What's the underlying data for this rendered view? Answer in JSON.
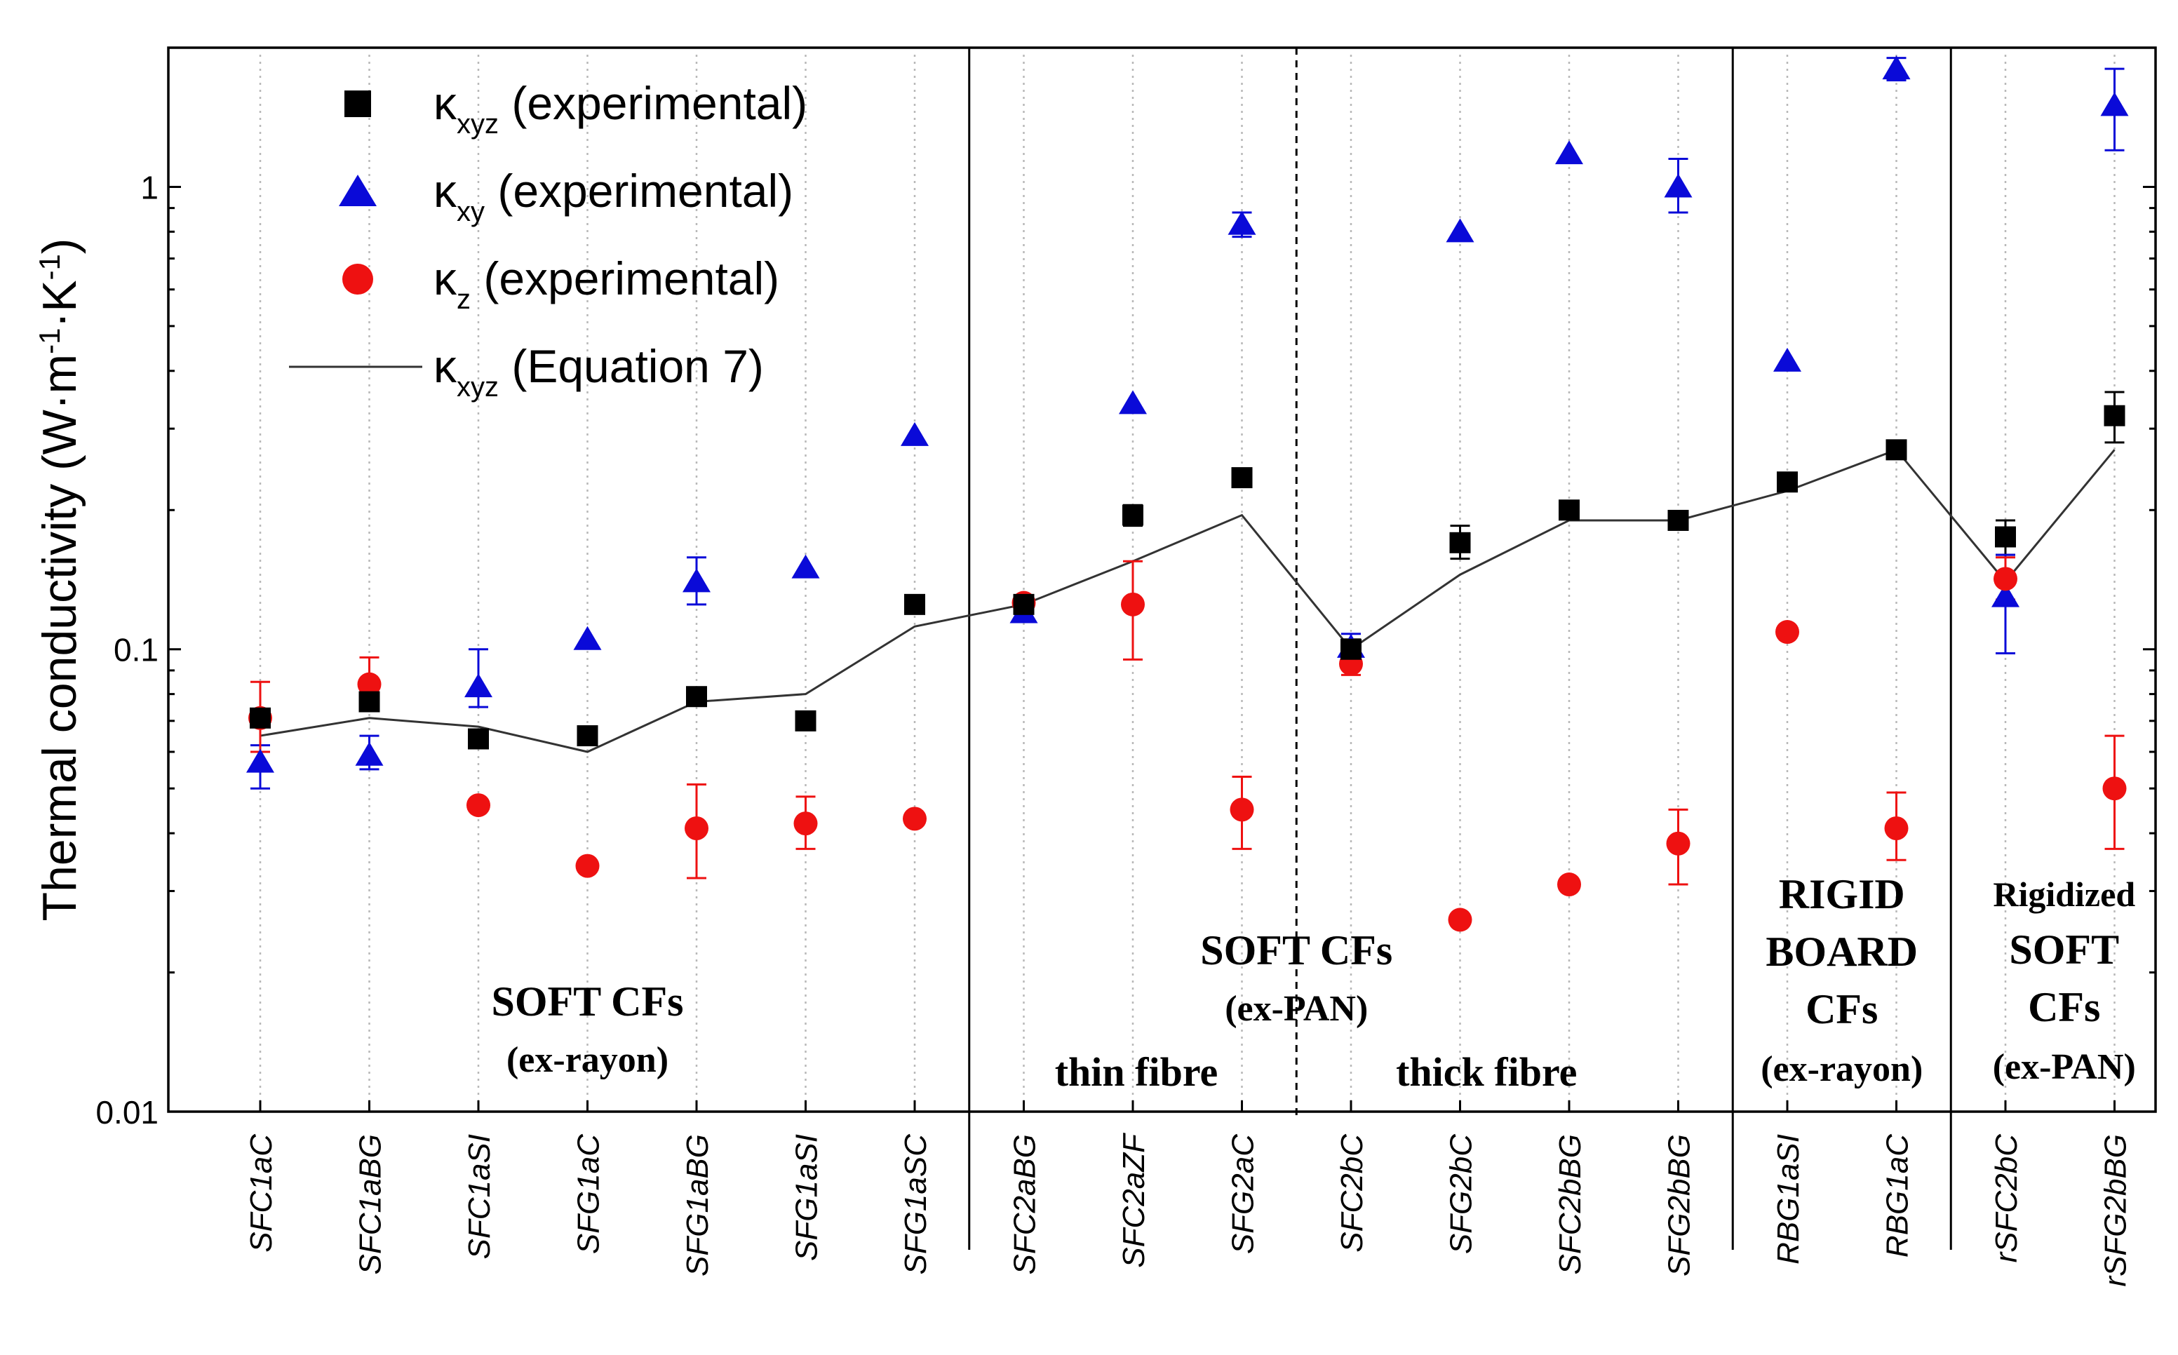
{
  "chart_data": {
    "type": "scatter",
    "ylabel": "Thermal conductivity (W·m⁻¹·K⁻¹)",
    "yscale": "log",
    "ylim": [
      0.01,
      2.0
    ],
    "yticks": [
      {
        "value": 0.01,
        "label": "0.01"
      },
      {
        "value": 0.1,
        "label": "0.1"
      },
      {
        "value": 1,
        "label": "1"
      }
    ],
    "categories": [
      "SFC1aC",
      "SFC1aBG",
      "SFC1aSI",
      "SFG1aC",
      "SFG1aBG",
      "SFG1aSI",
      "SFG1aSC",
      "SFC2aBG",
      "SFC2aZF",
      "SFG2aC",
      "SFC2bC",
      "SFG2bC",
      "SFC2bBG",
      "SFG2bBG",
      "RBG1aSI",
      "RBG1aC",
      "rSFC2bC",
      "rSFG2bBG"
    ],
    "legend_position": "top-left",
    "legend": [
      {
        "symbol": "square",
        "name": "κ",
        "sub": "xyz",
        "suffix": " (experimental)"
      },
      {
        "symbol": "triangle",
        "name": "κ",
        "sub": "xy",
        "suffix": "  (experimental)"
      },
      {
        "symbol": "circle",
        "name": "κ",
        "sub": "z",
        "suffix": "  (experimental)"
      },
      {
        "symbol": "line",
        "name": "κ",
        "sub": "xyz",
        "suffix": " (Equation 7)"
      }
    ],
    "series": [
      {
        "name": "κxyz (experimental)",
        "marker": "square",
        "color": "#000000",
        "values": [
          0.071,
          0.077,
          0.064,
          0.065,
          0.079,
          0.07,
          0.125,
          0.125,
          0.195,
          0.235,
          0.1,
          0.17,
          0.2,
          0.19,
          0.23,
          0.27,
          0.175,
          0.32
        ],
        "err_low": [
          null,
          null,
          null,
          null,
          null,
          null,
          null,
          null,
          0.185,
          null,
          0.095,
          0.157,
          null,
          null,
          null,
          null,
          0.16,
          0.28
        ],
        "err_high": [
          null,
          null,
          null,
          null,
          null,
          null,
          null,
          null,
          0.205,
          null,
          0.105,
          0.185,
          null,
          null,
          null,
          null,
          0.19,
          0.36
        ]
      },
      {
        "name": "κxy (experimental)",
        "marker": "triangle",
        "color": "#0a0ad8",
        "values": [
          0.057,
          0.059,
          0.083,
          0.105,
          0.14,
          0.15,
          0.29,
          0.12,
          0.34,
          0.83,
          0.101,
          0.8,
          1.18,
          1.0,
          0.42,
          1.8,
          0.13,
          1.5
        ],
        "err_low": [
          0.05,
          0.055,
          0.075,
          null,
          0.125,
          null,
          null,
          null,
          null,
          0.78,
          0.095,
          null,
          null,
          0.88,
          null,
          1.7,
          0.098,
          1.2
        ],
        "err_high": [
          0.062,
          0.065,
          0.1,
          null,
          0.158,
          null,
          null,
          null,
          null,
          0.88,
          0.108,
          null,
          null,
          1.15,
          null,
          1.9,
          0.16,
          1.8
        ]
      },
      {
        "name": "κz (experimental)",
        "marker": "circle",
        "color": "#ee1111",
        "values": [
          0.071,
          0.084,
          0.046,
          0.034,
          0.041,
          0.042,
          0.043,
          0.126,
          0.125,
          0.045,
          0.093,
          0.026,
          0.031,
          0.038,
          0.109,
          0.041,
          0.142,
          0.05
        ],
        "err_low": [
          0.06,
          0.075,
          null,
          null,
          0.032,
          0.037,
          null,
          null,
          0.095,
          0.037,
          0.088,
          null,
          null,
          0.031,
          null,
          0.035,
          0.128,
          0.037
        ],
        "err_high": [
          0.085,
          0.096,
          null,
          null,
          0.051,
          0.048,
          null,
          null,
          0.155,
          0.053,
          0.1,
          null,
          null,
          0.045,
          null,
          0.049,
          0.158,
          0.065
        ]
      },
      {
        "name": "κxyz (Equation 7)",
        "marker": "line",
        "color": "#333333",
        "values": [
          0.065,
          0.071,
          0.068,
          0.06,
          0.077,
          0.08,
          0.112,
          0.125,
          0.155,
          0.195,
          0.1,
          0.145,
          0.19,
          0.19,
          0.22,
          0.27,
          0.14,
          0.27
        ]
      }
    ],
    "group_dividers": [
      {
        "after_index": 6,
        "style": "solid"
      },
      {
        "after_index": 9,
        "style": "dashed"
      },
      {
        "after_index": 13,
        "style": "solid"
      },
      {
        "after_index": 15,
        "style": "solid"
      }
    ],
    "annotations": [
      {
        "id": "soft-rayon",
        "lines": [
          "SOFT CFs",
          "(ex-rayon)"
        ]
      },
      {
        "id": "soft-pan",
        "lines": [
          "SOFT CFs",
          "(ex-PAN)"
        ]
      },
      {
        "id": "thin",
        "lines": [
          "thin fibre"
        ]
      },
      {
        "id": "thick",
        "lines": [
          "thick fibre"
        ]
      },
      {
        "id": "rigid",
        "lines": [
          "RIGID",
          "BOARD",
          "CFs",
          "(ex-rayon)"
        ]
      },
      {
        "id": "rigidized",
        "lines": [
          "Rigidized",
          "SOFT",
          "CFs",
          "(ex-PAN)"
        ]
      }
    ]
  }
}
